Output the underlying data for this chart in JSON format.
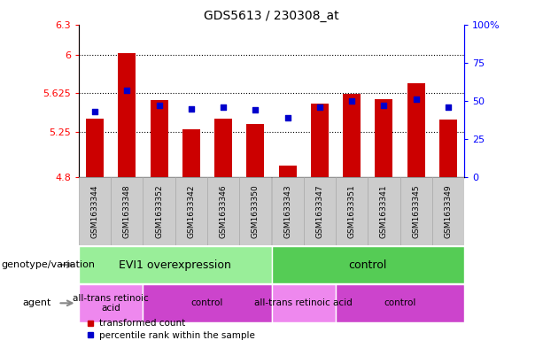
{
  "title": "GDS5613 / 230308_at",
  "samples": [
    "GSM1633344",
    "GSM1633348",
    "GSM1633352",
    "GSM1633342",
    "GSM1633346",
    "GSM1633350",
    "GSM1633343",
    "GSM1633347",
    "GSM1633351",
    "GSM1633341",
    "GSM1633345",
    "GSM1633349"
  ],
  "bar_values": [
    5.38,
    6.02,
    5.56,
    5.27,
    5.38,
    5.32,
    4.92,
    5.52,
    5.62,
    5.57,
    5.72,
    5.37
  ],
  "dot_values": [
    43,
    57,
    47,
    45,
    46,
    44,
    39,
    46,
    50,
    47,
    51,
    46
  ],
  "ymin": 4.8,
  "ymax": 6.3,
  "y2min": 0,
  "y2max": 100,
  "yticks": [
    4.8,
    5.25,
    5.625,
    6.0,
    6.3
  ],
  "ytick_labels": [
    "4.8",
    "5.25",
    "5.625",
    "6",
    "6.3"
  ],
  "y2ticks": [
    0,
    25,
    50,
    75,
    100
  ],
  "y2tick_labels": [
    "0",
    "25",
    "50",
    "75",
    "100%"
  ],
  "hlines": [
    6.0,
    5.625,
    5.25
  ],
  "bar_color": "#cc0000",
  "dot_color": "#0000cc",
  "bar_bottom": 4.8,
  "genotype_groups": [
    {
      "label": "EVI1 overexpression",
      "start": 0,
      "end": 6,
      "color": "#99ee99"
    },
    {
      "label": "control",
      "start": 6,
      "end": 12,
      "color": "#55cc55"
    }
  ],
  "agent_groups": [
    {
      "label": "all-trans retinoic\nacid",
      "start": 0,
      "end": 2,
      "color": "#ee88ee"
    },
    {
      "label": "control",
      "start": 2,
      "end": 6,
      "color": "#cc44cc"
    },
    {
      "label": "all-trans retinoic acid",
      "start": 6,
      "end": 8,
      "color": "#ee88ee"
    },
    {
      "label": "control",
      "start": 8,
      "end": 12,
      "color": "#cc44cc"
    }
  ],
  "legend_red": "transformed count",
  "legend_blue": "percentile rank within the sample",
  "xlabel_genotype": "genotype/variation",
  "xlabel_agent": "agent",
  "sample_bg": "#cccccc",
  "sample_border": "#aaaaaa"
}
